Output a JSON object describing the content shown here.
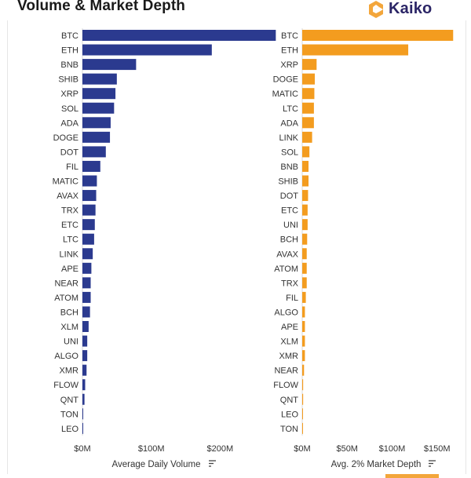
{
  "header": {
    "title": "Volume & Market Depth",
    "brand_name": "Kaiko"
  },
  "colors": {
    "volume_bar": "#2b3a8f",
    "depth_bar": "#f39c1f",
    "brand_orange": "#f3a63b",
    "brand_text": "#2b2566"
  },
  "icons": {
    "sort": "sort-descending-icon",
    "brand": "kaiko-logo-icon"
  },
  "chart_data": [
    {
      "type": "bar",
      "orientation": "horizontal",
      "categories": [
        "BTC",
        "ETH",
        "BNB",
        "SHIB",
        "XRP",
        "SOL",
        "ADA",
        "DOGE",
        "DOT",
        "FIL",
        "MATIC",
        "AVAX",
        "TRX",
        "ETC",
        "LTC",
        "LINK",
        "APE",
        "NEAR",
        "ATOM",
        "BCH",
        "XLM",
        "UNI",
        "ALGO",
        "XMR",
        "FLOW",
        "QNT",
        "TON",
        "LEO"
      ],
      "values": [
        281,
        188,
        78,
        50,
        48,
        46,
        41,
        40,
        34,
        26,
        21,
        20,
        19,
        18,
        17,
        15,
        13,
        12,
        12,
        11,
        9,
        7,
        7,
        6,
        4,
        3,
        1,
        1
      ],
      "unit": "USD millions",
      "xlabel": "Average Daily Volume",
      "xticks": [
        "$0M",
        "$100M",
        "$200M"
      ],
      "xtick_values": [
        0,
        100,
        200
      ],
      "xlim": [
        0,
        300
      ],
      "grid": false,
      "series_color": "#2b3a8f"
    },
    {
      "type": "bar",
      "orientation": "horizontal",
      "categories": [
        "BTC",
        "ETH",
        "XRP",
        "DOGE",
        "MATIC",
        "LTC",
        "ADA",
        "LINK",
        "SOL",
        "BNB",
        "SHIB",
        "DOT",
        "ETC",
        "UNI",
        "BCH",
        "AVAX",
        "ATOM",
        "TRX",
        "FIL",
        "ALGO",
        "APE",
        "XLM",
        "XMR",
        "NEAR",
        "FLOW",
        "QNT",
        "LEO",
        "TON"
      ],
      "values": [
        168,
        118,
        16,
        14,
        13.5,
        13,
        13,
        11,
        8,
        7,
        7,
        6.5,
        6,
        6,
        5.5,
        5,
        5,
        5,
        4,
        3,
        3,
        3,
        3,
        2,
        1,
        1,
        0.5,
        0.3
      ],
      "unit": "USD millions",
      "xlabel": "Avg. 2% Market Depth",
      "xticks": [
        "$0M",
        "$50M",
        "$100M",
        "$150M"
      ],
      "xtick_values": [
        0,
        50,
        100,
        150
      ],
      "xlim": [
        0,
        180
      ],
      "grid": false,
      "series_color": "#f39c1f"
    }
  ]
}
